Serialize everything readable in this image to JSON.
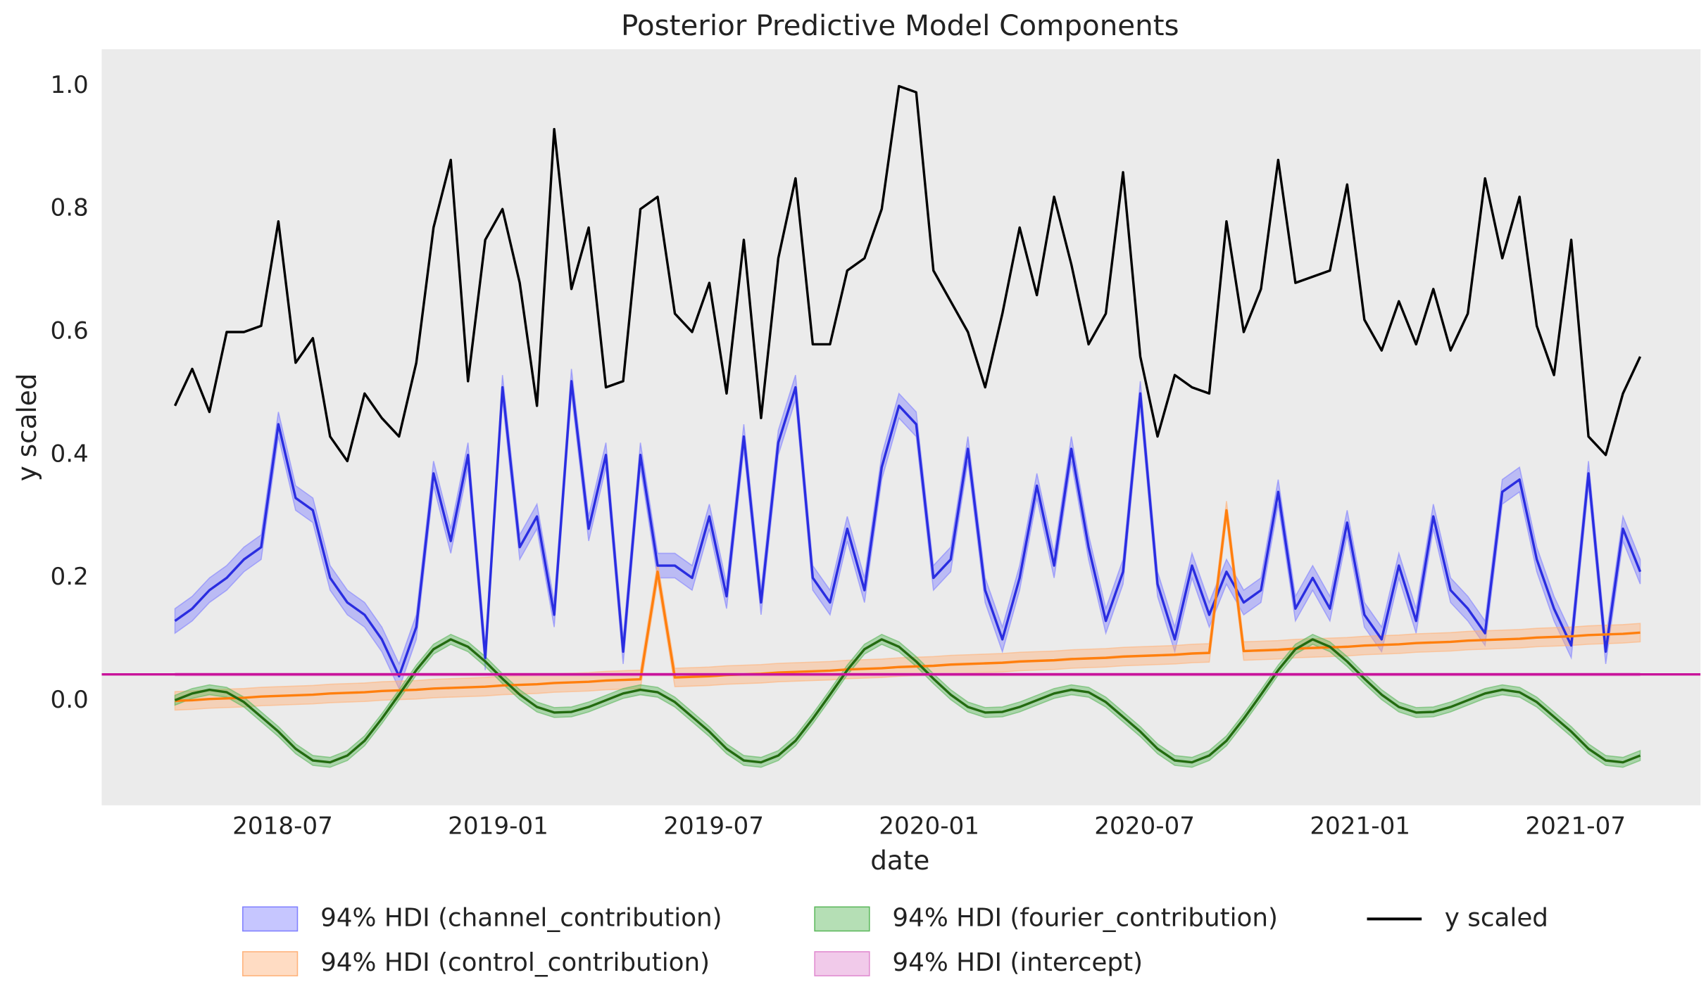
{
  "chart_data": {
    "type": "line",
    "title": "Posterior Predictive Model Components",
    "xlabel": "date",
    "ylabel": "y scaled",
    "grid": true,
    "xlim": [
      2018.08,
      2021.79
    ],
    "xticks": [
      {
        "value": 2018.5,
        "label": "2018-07"
      },
      {
        "value": 2019.0,
        "label": "2019-01"
      },
      {
        "value": 2019.5,
        "label": "2019-07"
      },
      {
        "value": 2020.0,
        "label": "2020-01"
      },
      {
        "value": 2020.5,
        "label": "2020-07"
      },
      {
        "value": 2021.0,
        "label": "2021-01"
      },
      {
        "value": 2021.5,
        "label": "2021-07"
      }
    ],
    "ylim": [
      -0.17,
      1.06
    ],
    "yticks": [
      {
        "value": 0,
        "label": "0.0"
      },
      0.2,
      0.4,
      0.6,
      0.8,
      {
        "value": 1,
        "label": "1.0"
      }
    ],
    "x": [
      2018.25,
      2018.29,
      2018.33,
      2018.37,
      2018.41,
      2018.45,
      2018.49,
      2018.53,
      2018.57,
      2018.61,
      2018.65,
      2018.69,
      2018.73,
      2018.77,
      2018.81,
      2018.85,
      2018.89,
      2018.93,
      2018.97,
      2019.01,
      2019.05,
      2019.09,
      2019.13,
      2019.17,
      2019.21,
      2019.25,
      2019.29,
      2019.33,
      2019.37,
      2019.41,
      2019.45,
      2019.49,
      2019.53,
      2019.57,
      2019.61,
      2019.65,
      2019.69,
      2019.73,
      2019.77,
      2019.81,
      2019.85,
      2019.89,
      2019.93,
      2019.97,
      2020.01,
      2020.05,
      2020.09,
      2020.13,
      2020.17,
      2020.21,
      2020.25,
      2020.29,
      2020.33,
      2020.37,
      2020.41,
      2020.45,
      2020.49,
      2020.53,
      2020.57,
      2020.61,
      2020.65,
      2020.69,
      2020.73,
      2020.77,
      2020.81,
      2020.85,
      2020.89,
      2020.93,
      2020.97,
      2021.01,
      2021.05,
      2021.09,
      2021.13,
      2021.17,
      2021.21,
      2021.25,
      2021.29,
      2021.33,
      2021.37,
      2021.41,
      2021.45,
      2021.49,
      2021.53,
      2021.57,
      2021.61,
      2021.65
    ],
    "series": [
      {
        "name": "94% HDI (channel_contribution)",
        "color": "#2a2de0",
        "band_color": "#8080ff",
        "band": 0.02,
        "values": [
          0.13,
          0.15,
          0.18,
          0.2,
          0.23,
          0.25,
          0.45,
          0.33,
          0.31,
          0.2,
          0.16,
          0.14,
          0.1,
          0.04,
          0.12,
          0.37,
          0.26,
          0.4,
          0.07,
          0.51,
          0.25,
          0.3,
          0.14,
          0.52,
          0.28,
          0.4,
          0.08,
          0.4,
          0.22,
          0.22,
          0.2,
          0.3,
          0.17,
          0.43,
          0.16,
          0.42,
          0.51,
          0.2,
          0.16,
          0.28,
          0.18,
          0.38,
          0.48,
          0.45,
          0.2,
          0.23,
          0.41,
          0.18,
          0.1,
          0.2,
          0.35,
          0.22,
          0.41,
          0.25,
          0.13,
          0.21,
          0.5,
          0.19,
          0.1,
          0.22,
          0.14,
          0.21,
          0.16,
          0.18,
          0.34,
          0.15,
          0.2,
          0.15,
          0.29,
          0.14,
          0.1,
          0.22,
          0.13,
          0.3,
          0.18,
          0.15,
          0.11,
          0.34,
          0.36,
          0.23,
          0.15,
          0.09,
          0.37,
          0.08,
          0.28,
          0.21
        ]
      },
      {
        "name": "94% HDI (control_contribution)",
        "color": "#ff7f0e",
        "band_color": "#ffb27a",
        "band": 0.015,
        "values": [
          0,
          0.001,
          0.003,
          0.004,
          0.005,
          0.007,
          0.008,
          0.009,
          0.01,
          0.012,
          0.013,
          0.014,
          0.016,
          0.017,
          0.018,
          0.02,
          0.021,
          0.022,
          0.023,
          0.025,
          0.026,
          0.027,
          0.029,
          0.03,
          0.031,
          0.033,
          0.034,
          0.035,
          0.21,
          0.038,
          0.039,
          0.04,
          0.042,
          0.043,
          0.044,
          0.046,
          0.047,
          0.048,
          0.049,
          0.051,
          0.052,
          0.053,
          0.055,
          0.056,
          0.057,
          0.059,
          0.06,
          0.061,
          0.062,
          0.064,
          0.065,
          0.066,
          0.068,
          0.069,
          0.07,
          0.072,
          0.073,
          0.074,
          0.075,
          0.077,
          0.078,
          0.31,
          0.081,
          0.082,
          0.083,
          0.085,
          0.086,
          0.087,
          0.088,
          0.09,
          0.091,
          0.092,
          0.094,
          0.095,
          0.096,
          0.098,
          0.099,
          0.1,
          0.101,
          0.103,
          0.104,
          0.105,
          0.107,
          0.108,
          0.109,
          0.111
        ]
      },
      {
        "name": "94% HDI (fourier_contribution)",
        "color": "#236b10",
        "band_color": "#5cb85c",
        "band": 0.008,
        "values": [
          0.001,
          0.012,
          0.018,
          0.014,
          -0.002,
          -0.026,
          -0.05,
          -0.078,
          -0.097,
          -0.1,
          -0.089,
          -0.065,
          -0.029,
          0.01,
          0.05,
          0.084,
          0.1,
          0.088,
          0.064,
          0.036,
          0.01,
          -0.01,
          -0.019,
          -0.018,
          -0.01,
          0.001,
          0.012,
          0.018,
          0.014,
          -0.002,
          -0.026,
          -0.05,
          -0.078,
          -0.097,
          -0.1,
          -0.089,
          -0.065,
          -0.029,
          0.01,
          0.05,
          0.084,
          0.1,
          0.088,
          0.064,
          0.036,
          0.01,
          -0.01,
          -0.019,
          -0.018,
          -0.01,
          0.001,
          0.012,
          0.018,
          0.014,
          -0.002,
          -0.026,
          -0.05,
          -0.078,
          -0.097,
          -0.1,
          -0.089,
          -0.065,
          -0.029,
          0.01,
          0.05,
          0.084,
          0.1,
          0.088,
          0.064,
          0.036,
          0.01,
          -0.01,
          -0.019,
          -0.018,
          -0.01,
          0.001,
          0.012,
          0.018,
          0.014,
          -0.002,
          -0.026,
          -0.05,
          -0.078,
          -0.097,
          -0.1,
          -0.089
        ]
      },
      {
        "name": "94% HDI (intercept)",
        "color": "#c8139a",
        "band_color": "#e08ad0",
        "band": 0.003,
        "value": 0.043
      },
      {
        "name": "y scaled",
        "color": "#000000",
        "values": [
          0.48,
          0.54,
          0.47,
          0.6,
          0.6,
          0.61,
          0.78,
          0.55,
          0.59,
          0.43,
          0.39,
          0.5,
          0.46,
          0.43,
          0.55,
          0.77,
          0.88,
          0.52,
          0.75,
          0.8,
          0.68,
          0.48,
          0.93,
          0.67,
          0.77,
          0.51,
          0.52,
          0.8,
          0.82,
          0.63,
          0.6,
          0.68,
          0.5,
          0.75,
          0.46,
          0.72,
          0.85,
          0.58,
          0.58,
          0.7,
          0.72,
          0.8,
          1.0,
          0.99,
          0.7,
          0.65,
          0.6,
          0.51,
          0.63,
          0.77,
          0.66,
          0.82,
          0.71,
          0.58,
          0.63,
          0.86,
          0.56,
          0.43,
          0.53,
          0.51,
          0.5,
          0.78,
          0.6,
          0.67,
          0.88,
          0.68,
          0.69,
          0.7,
          0.84,
          0.62,
          0.57,
          0.65,
          0.58,
          0.67,
          0.57,
          0.63,
          0.85,
          0.72,
          0.82,
          0.61,
          0.53,
          0.75,
          0.43,
          0.4,
          0.5,
          0.56
        ]
      }
    ]
  }
}
